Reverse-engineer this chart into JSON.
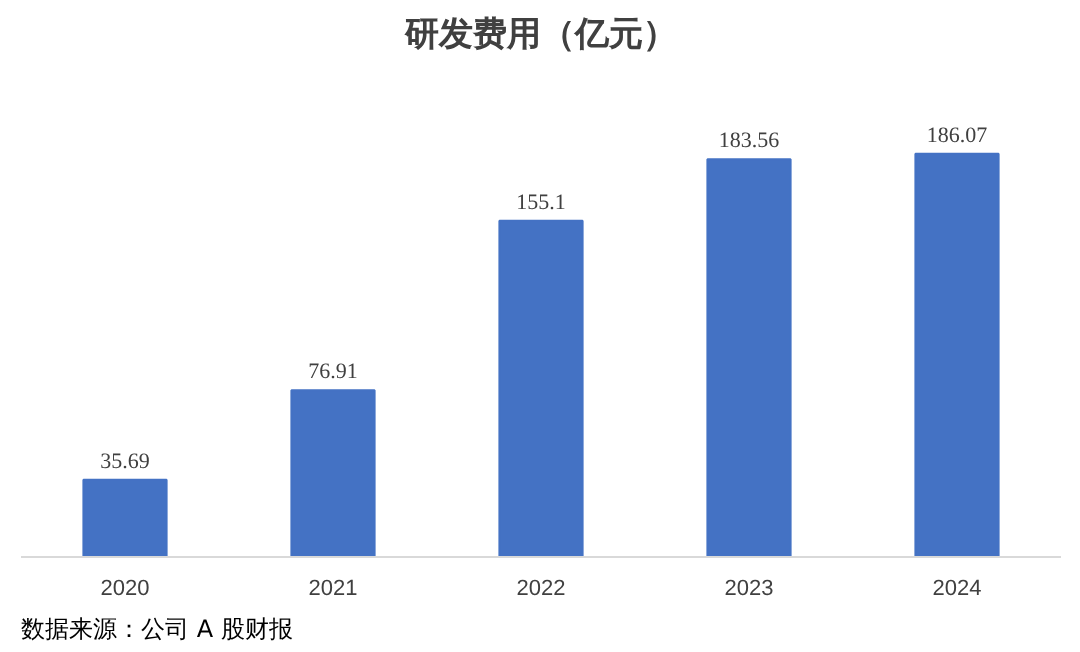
{
  "chart_data": {
    "type": "bar",
    "title": "研发费用（亿元）",
    "categories": [
      "2020",
      "2021",
      "2022",
      "2023",
      "2024"
    ],
    "values": [
      35.69,
      76.91,
      155.1,
      183.56,
      186.07
    ],
    "color": "#4472c4",
    "data_labels": true,
    "tick_labels": "x",
    "grid": false,
    "annotations": [
      "数据来源：公司 A 股财报"
    ]
  }
}
